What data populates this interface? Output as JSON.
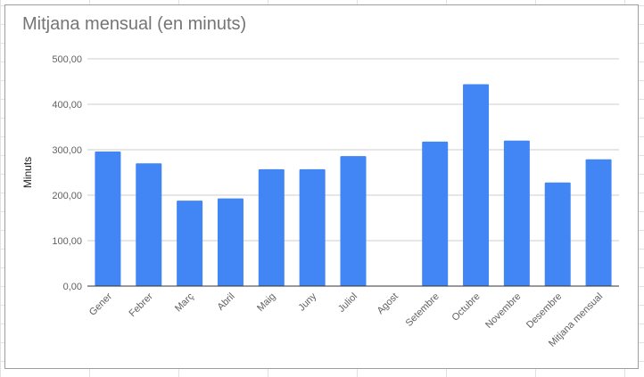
{
  "chart_data": {
    "type": "bar",
    "title": "Mitjana mensual (en minuts)",
    "xlabel": "",
    "ylabel": "Minuts",
    "ylim": [
      0,
      500
    ],
    "yticks": [
      0,
      100,
      200,
      300,
      400,
      500
    ],
    "ytick_labels": [
      "0,00",
      "100,00",
      "200,00",
      "300,00",
      "400,00",
      "500,00"
    ],
    "categories": [
      "Gener",
      "Febrer",
      "Març",
      "Abril",
      "Maig",
      "Juny",
      "Juliol",
      "Agost",
      "Setembre",
      "Octubre",
      "Novembre",
      "Desembre",
      "Mitjana mensual"
    ],
    "values": [
      296,
      270,
      188,
      193,
      257,
      257,
      286,
      0,
      318,
      444,
      320,
      228,
      279
    ],
    "grid": true,
    "legend": "none",
    "bar_color": "#4285f4"
  }
}
